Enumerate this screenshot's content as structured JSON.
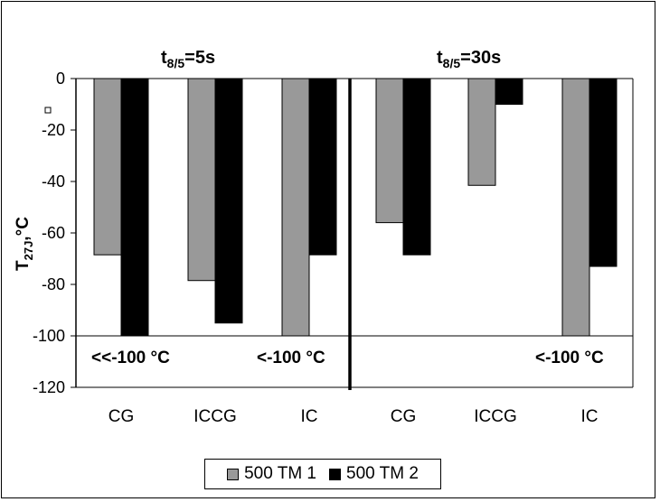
{
  "chart_data": {
    "type": "bar",
    "panels": [
      {
        "title": "t8/5=5s",
        "title_base": "t",
        "title_sub": "8/5",
        "title_rest": "=5s",
        "categories": [
          "CG",
          "ICCG",
          "IC"
        ]
      },
      {
        "title": "t8/5=30s",
        "title_base": "t",
        "title_sub": "8/5",
        "title_rest": "=30s",
        "categories": [
          "CG",
          "ICCG",
          "IC"
        ]
      }
    ],
    "categories": [
      "CG",
      "ICCG",
      "IC",
      "CG",
      "ICCG",
      "IC"
    ],
    "series": [
      {
        "name": "500 TM 1",
        "color": "#999999",
        "values": [
          -68.5,
          -78.5,
          -100,
          -56,
          -41.5,
          -100
        ]
      },
      {
        "name": "500 TM 2",
        "color": "#000000",
        "values": [
          -100,
          -95,
          -68.5,
          -68.5,
          -10,
          -73
        ]
      }
    ],
    "ylabel": "T27J,°C",
    "ylabel_base": "T",
    "ylabel_sub": "27J",
    "ylabel_rest": ",°C",
    "ylim": [
      -120,
      0
    ],
    "yticks": [
      0,
      -20,
      -40,
      -60,
      -80,
      -100,
      -120
    ],
    "annotations": [
      "<<-100 °C",
      "<-100 °C",
      "<-100 °C"
    ],
    "grid": false,
    "legend_position": "bottom"
  }
}
